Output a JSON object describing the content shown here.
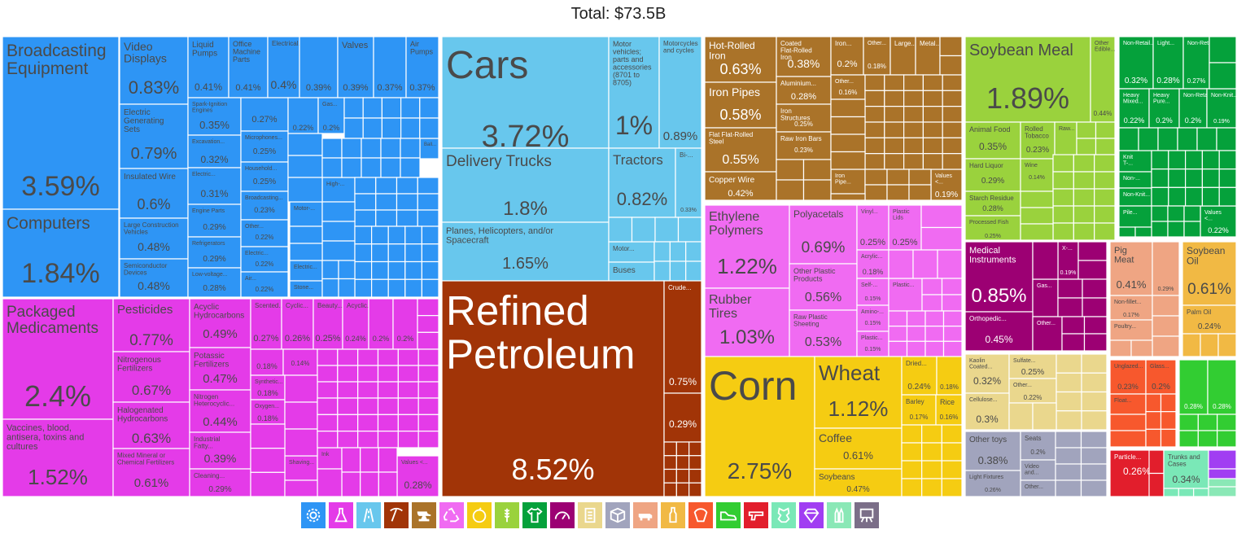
{
  "chart_data": {
    "type": "treemap",
    "title": "Total: $73.5B",
    "unit": "% of total",
    "groups": [
      {
        "sector": "Machines",
        "color": "#2e95f5",
        "items": [
          {
            "name": "Broadcasting Equipment",
            "value": 3.59
          },
          {
            "name": "Computers",
            "value": 1.84
          },
          {
            "name": "Video Displays",
            "value": 0.83
          },
          {
            "name": "Electric Generating Sets",
            "value": 0.79
          },
          {
            "name": "Insulated Wire",
            "value": 0.6
          },
          {
            "name": "Large Construction Vehicles",
            "value": 0.48
          },
          {
            "name": "Semiconductor Devices",
            "value": 0.48
          },
          {
            "name": "Liquid Pumps",
            "value": 0.41
          },
          {
            "name": "Office Machine Parts",
            "value": 0.41
          },
          {
            "name": "Electrical...",
            "value": 0.4
          },
          {
            "name": "",
            "value": 0.39
          },
          {
            "name": "Valves",
            "value": 0.39
          },
          {
            "name": "",
            "value": 0.37
          },
          {
            "name": "Air Pumps",
            "value": 0.37
          },
          {
            "name": "Spark-Ignition Engines",
            "value": 0.35
          },
          {
            "name": "Excavation...",
            "value": 0.32
          },
          {
            "name": "Electric...",
            "value": 0.31
          },
          {
            "name": "Engine Parts",
            "value": 0.29
          },
          {
            "name": "Refrigerators",
            "value": 0.29
          },
          {
            "name": "Low-voltage...",
            "value": 0.28
          },
          {
            "name": "",
            "value": 0.27
          },
          {
            "name": "Microphones...",
            "value": 0.25
          },
          {
            "name": "Household...",
            "value": 0.25
          },
          {
            "name": "Broadcasting...",
            "value": 0.23
          },
          {
            "name": "Other...",
            "value": 0.22
          },
          {
            "name": "Electric...",
            "value": 0.22
          },
          {
            "name": "Air...",
            "value": 0.22
          },
          {
            "name": "",
            "value": 0.22
          },
          {
            "name": "Gas...",
            "value": 0.2
          },
          {
            "name": "High-...",
            "value": null
          },
          {
            "name": "Motor-...",
            "value": null
          },
          {
            "name": "Electric...",
            "value": null
          },
          {
            "name": "Stone...",
            "value": null
          },
          {
            "name": "Ball...",
            "value": null
          }
        ]
      },
      {
        "sector": "Chemical Products",
        "color": "#e43be8",
        "items": [
          {
            "name": "Packaged Medicaments",
            "value": 2.4
          },
          {
            "name": "Vaccines, blood, antisera, toxins and cultures",
            "value": 1.52
          },
          {
            "name": "Pesticides",
            "value": 0.77
          },
          {
            "name": "Nitrogenous Fertilizers",
            "value": 0.67
          },
          {
            "name": "Halogenated Hydrocarbons",
            "value": 0.63
          },
          {
            "name": "Mixed Mineral or Chemical Fertilizers",
            "value": 0.61
          },
          {
            "name": "Acyclic Hydrocarbons",
            "value": 0.49
          },
          {
            "name": "Potassic Fertilizers",
            "value": 0.47
          },
          {
            "name": "Nitrogen Heterocyclic...",
            "value": 0.44
          },
          {
            "name": "Industrial Fatty...",
            "value": 0.39
          },
          {
            "name": "Cleaning...",
            "value": 0.29
          },
          {
            "name": "Scented...",
            "value": 0.27
          },
          {
            "name": "Cyclic...",
            "value": 0.26
          },
          {
            "name": "Beauty...",
            "value": 0.25
          },
          {
            "name": "Acyclic...",
            "value": 0.24
          },
          {
            "name": "",
            "value": 0.2
          },
          {
            "name": "",
            "value": 0.2
          },
          {
            "name": "",
            "value": 0.18
          },
          {
            "name": "",
            "value": 0.14
          },
          {
            "name": "Synthetic...",
            "value": 0.18
          },
          {
            "name": "Oxygen...",
            "value": 0.18
          },
          {
            "name": "Shaving...",
            "value": null
          },
          {
            "name": "Ink",
            "value": null
          },
          {
            "name": "Values <...",
            "value": 0.28
          }
        ]
      },
      {
        "sector": "Transportation",
        "color": "#68c7ed",
        "items": [
          {
            "name": "Cars",
            "value": 3.72
          },
          {
            "name": "Delivery Trucks",
            "value": 1.8
          },
          {
            "name": "Planes, Helicopters, and/or Spacecraft",
            "value": 1.65
          },
          {
            "name": "Motor vehicles; parts and accessories (8701 to 8705)",
            "value": 1
          },
          {
            "name": "Motorcycles and cycles",
            "value": 0.89
          },
          {
            "name": "Tractors",
            "value": 0.82
          },
          {
            "name": "Bi-...",
            "value": 0.33
          },
          {
            "name": "Motor...",
            "value": null
          },
          {
            "name": "Buses",
            "value": null
          }
        ]
      },
      {
        "sector": "Mineral Products",
        "color": "#a13407",
        "items": [
          {
            "name": "Refined Petroleum",
            "value": 8.52
          },
          {
            "name": "Crude...",
            "value": 0.75
          },
          {
            "name": "",
            "value": 0.29
          }
        ]
      },
      {
        "sector": "Metals",
        "color": "#aa7329",
        "items": [
          {
            "name": "Hot-Rolled Iron",
            "value": 0.63
          },
          {
            "name": "Iron Pipes",
            "value": 0.58
          },
          {
            "name": "Flat Flat-Rolled Steel",
            "value": 0.55
          },
          {
            "name": "Copper Wire",
            "value": 0.42
          },
          {
            "name": "Coated Flat-Rolled Iron",
            "value": 0.38
          },
          {
            "name": "Aluminium...",
            "value": 0.28
          },
          {
            "name": "Iron Structures",
            "value": 0.25
          },
          {
            "name": "Raw Iron Bars",
            "value": 0.23
          },
          {
            "name": "Iron...",
            "value": 0.2
          },
          {
            "name": "Other...",
            "value": 0.18
          },
          {
            "name": "Other...",
            "value": 0.16
          },
          {
            "name": "Large...",
            "value": null
          },
          {
            "name": "Metal...",
            "value": null
          },
          {
            "name": "Iron Pipe...",
            "value": null
          },
          {
            "name": "Values <...",
            "value": 0.19
          }
        ]
      },
      {
        "sector": "Plastics and Rubbers",
        "color": "#f06bf2",
        "items": [
          {
            "name": "Ethylene Polymers",
            "value": 1.22
          },
          {
            "name": "Rubber Tires",
            "value": 1.03
          },
          {
            "name": "Polyacetals",
            "value": 0.69
          },
          {
            "name": "Other Plastic Products",
            "value": 0.56
          },
          {
            "name": "Raw Plastic Sheeting",
            "value": 0.53
          },
          {
            "name": "Vinyl...",
            "value": 0.25
          },
          {
            "name": "Plastic Lids",
            "value": 0.25
          },
          {
            "name": "Acrylic...",
            "value": 0.18
          },
          {
            "name": "Self-...",
            "value": 0.15
          },
          {
            "name": "Amino-...",
            "value": 0.15
          },
          {
            "name": "Plastic...",
            "value": 0.15
          },
          {
            "name": "Plastic...",
            "value": null
          }
        ]
      },
      {
        "sector": "Vegetable Products",
        "color": "#f5cc12",
        "items": [
          {
            "name": "Corn",
            "value": 2.75
          },
          {
            "name": "Wheat",
            "value": 1.12
          },
          {
            "name": "Coffee",
            "value": 0.61
          },
          {
            "name": "Soybeans",
            "value": 0.47
          },
          {
            "name": "Dried...",
            "value": 0.24
          },
          {
            "name": "",
            "value": 0.18
          },
          {
            "name": "Barley",
            "value": 0.17
          },
          {
            "name": "Rice",
            "value": 0.16
          }
        ]
      },
      {
        "sector": "Foodstuffs",
        "color": "#9ad23d",
        "items": [
          {
            "name": "Soybean Meal",
            "value": 1.89
          },
          {
            "name": "Other Edible...",
            "value": 0.44
          },
          {
            "name": "Animal Food",
            "value": 0.35
          },
          {
            "name": "Rolled Tobacco",
            "value": 0.23
          },
          {
            "name": "Raw...",
            "value": null
          },
          {
            "name": "Hard Liquor",
            "value": 0.29
          },
          {
            "name": "Wine",
            "value": 0.14
          },
          {
            "name": "Starch Residue",
            "value": 0.28
          },
          {
            "name": "Processed Fish",
            "value": 0.25
          }
        ]
      },
      {
        "sector": "Textiles",
        "color": "#05a13b",
        "items": [
          {
            "name": "Non-Retail...",
            "value": 0.32
          },
          {
            "name": "Light...",
            "value": 0.28
          },
          {
            "name": "Non-Retail...",
            "value": 0.27
          },
          {
            "name": "Heavy Mixed...",
            "value": 0.22
          },
          {
            "name": "Heavy Pure...",
            "value": 0.2
          },
          {
            "name": "Non-Retail...",
            "value": 0.2
          },
          {
            "name": "Non-Knit...",
            "value": 0.19
          },
          {
            "name": "Knit T-...",
            "value": null
          },
          {
            "name": "Non-...",
            "value": null
          },
          {
            "name": "Non-Knit...",
            "value": null
          },
          {
            "name": "Pile...",
            "value": null
          },
          {
            "name": "Values <...",
            "value": 0.22
          }
        ]
      },
      {
        "sector": "Instruments",
        "color": "#9c0073",
        "items": [
          {
            "name": "Medical Instruments",
            "value": 0.85
          },
          {
            "name": "X-...",
            "value": 0.19
          },
          {
            "name": "Gas...",
            "value": null
          },
          {
            "name": "Orthopedic...",
            "value": 0.45
          },
          {
            "name": "Other...",
            "value": null
          }
        ]
      },
      {
        "sector": "Animal Products",
        "color": "#efa583",
        "items": [
          {
            "name": "Pig Meat",
            "value": 0.41
          },
          {
            "name": "",
            "value": 0.29
          },
          {
            "name": "Non-fillet...",
            "value": 0.17
          },
          {
            "name": "Poultry...",
            "value": null
          }
        ]
      },
      {
        "sector": "Animal and Vegetable Bi-Products",
        "color": "#f1b944",
        "items": [
          {
            "name": "Soybean Oil",
            "value": 0.61
          },
          {
            "name": "Palm Oil",
            "value": 0.24
          }
        ]
      },
      {
        "sector": "Paper Goods",
        "color": "#ead78d",
        "items": [
          {
            "name": "Kaolin Coated...",
            "value": 0.32
          },
          {
            "name": "Sulfate...",
            "value": 0.25
          },
          {
            "name": "Other...",
            "value": 0.22
          },
          {
            "name": "Cellulose...",
            "value": 0.3
          }
        ]
      },
      {
        "sector": "Miscellaneous",
        "color": "#a1a4bd",
        "items": [
          {
            "name": "Other toys",
            "value": 0.38
          },
          {
            "name": "Seats",
            "value": 0.2
          },
          {
            "name": "Video and...",
            "value": null
          },
          {
            "name": "Light Fixtures",
            "value": 0.26
          },
          {
            "name": "Other...",
            "value": null
          }
        ]
      },
      {
        "sector": "Stone and Glass",
        "color": "#f7582d",
        "items": [
          {
            "name": "Unglazed...",
            "value": 0.23
          },
          {
            "name": "Glass...",
            "value": 0.2
          },
          {
            "name": "Float...",
            "value": null
          }
        ]
      },
      {
        "sector": "Footwear and Headwear",
        "color": "#32cd32",
        "items": [
          {
            "name": "",
            "value": 0.28
          },
          {
            "name": "",
            "value": 0.28
          }
        ]
      },
      {
        "sector": "Weapons",
        "color": "#e21e2c",
        "items": [
          {
            "name": "Particle...",
            "value": 0.26
          }
        ]
      },
      {
        "sector": "Animal Hides",
        "color": "#7ae8b7",
        "items": [
          {
            "name": "Trunks and Cases",
            "value": 0.34
          }
        ]
      },
      {
        "sector": "Precious Metals",
        "color": "#a13ef2",
        "items": []
      }
    ]
  },
  "legend": [
    {
      "icon": "gear-icon",
      "color": "#2e95f5"
    },
    {
      "icon": "flask-icon",
      "color": "#e43be8"
    },
    {
      "icon": "road-icon",
      "color": "#68c7ed"
    },
    {
      "icon": "pickaxe-icon",
      "color": "#a13407"
    },
    {
      "icon": "anvil-icon",
      "color": "#aa7329"
    },
    {
      "icon": "recycle-icon",
      "color": "#f06bf2"
    },
    {
      "icon": "fruit-icon",
      "color": "#f5cc12"
    },
    {
      "icon": "wheat-icon",
      "color": "#9ad23d"
    },
    {
      "icon": "shirt-icon",
      "color": "#05a13b"
    },
    {
      "icon": "gauge-icon",
      "color": "#9c0073"
    },
    {
      "icon": "scroll-icon",
      "color": "#ead78d"
    },
    {
      "icon": "box-icon",
      "color": "#a1a4bd"
    },
    {
      "icon": "pig-icon",
      "color": "#efa583"
    },
    {
      "icon": "bottle-icon",
      "color": "#f1b944"
    },
    {
      "icon": "bricks-icon",
      "color": "#f7582d"
    },
    {
      "icon": "shoe-icon",
      "color": "#32cd32"
    },
    {
      "icon": "pistol-icon",
      "color": "#e21e2c"
    },
    {
      "icon": "hide-icon",
      "color": "#7ae8b7"
    },
    {
      "icon": "gem-icon",
      "color": "#a13ef2"
    },
    {
      "icon": "bullets-icon",
      "color": "#8ae8b6"
    },
    {
      "icon": "easel-icon",
      "color": "#7b6e88"
    }
  ]
}
